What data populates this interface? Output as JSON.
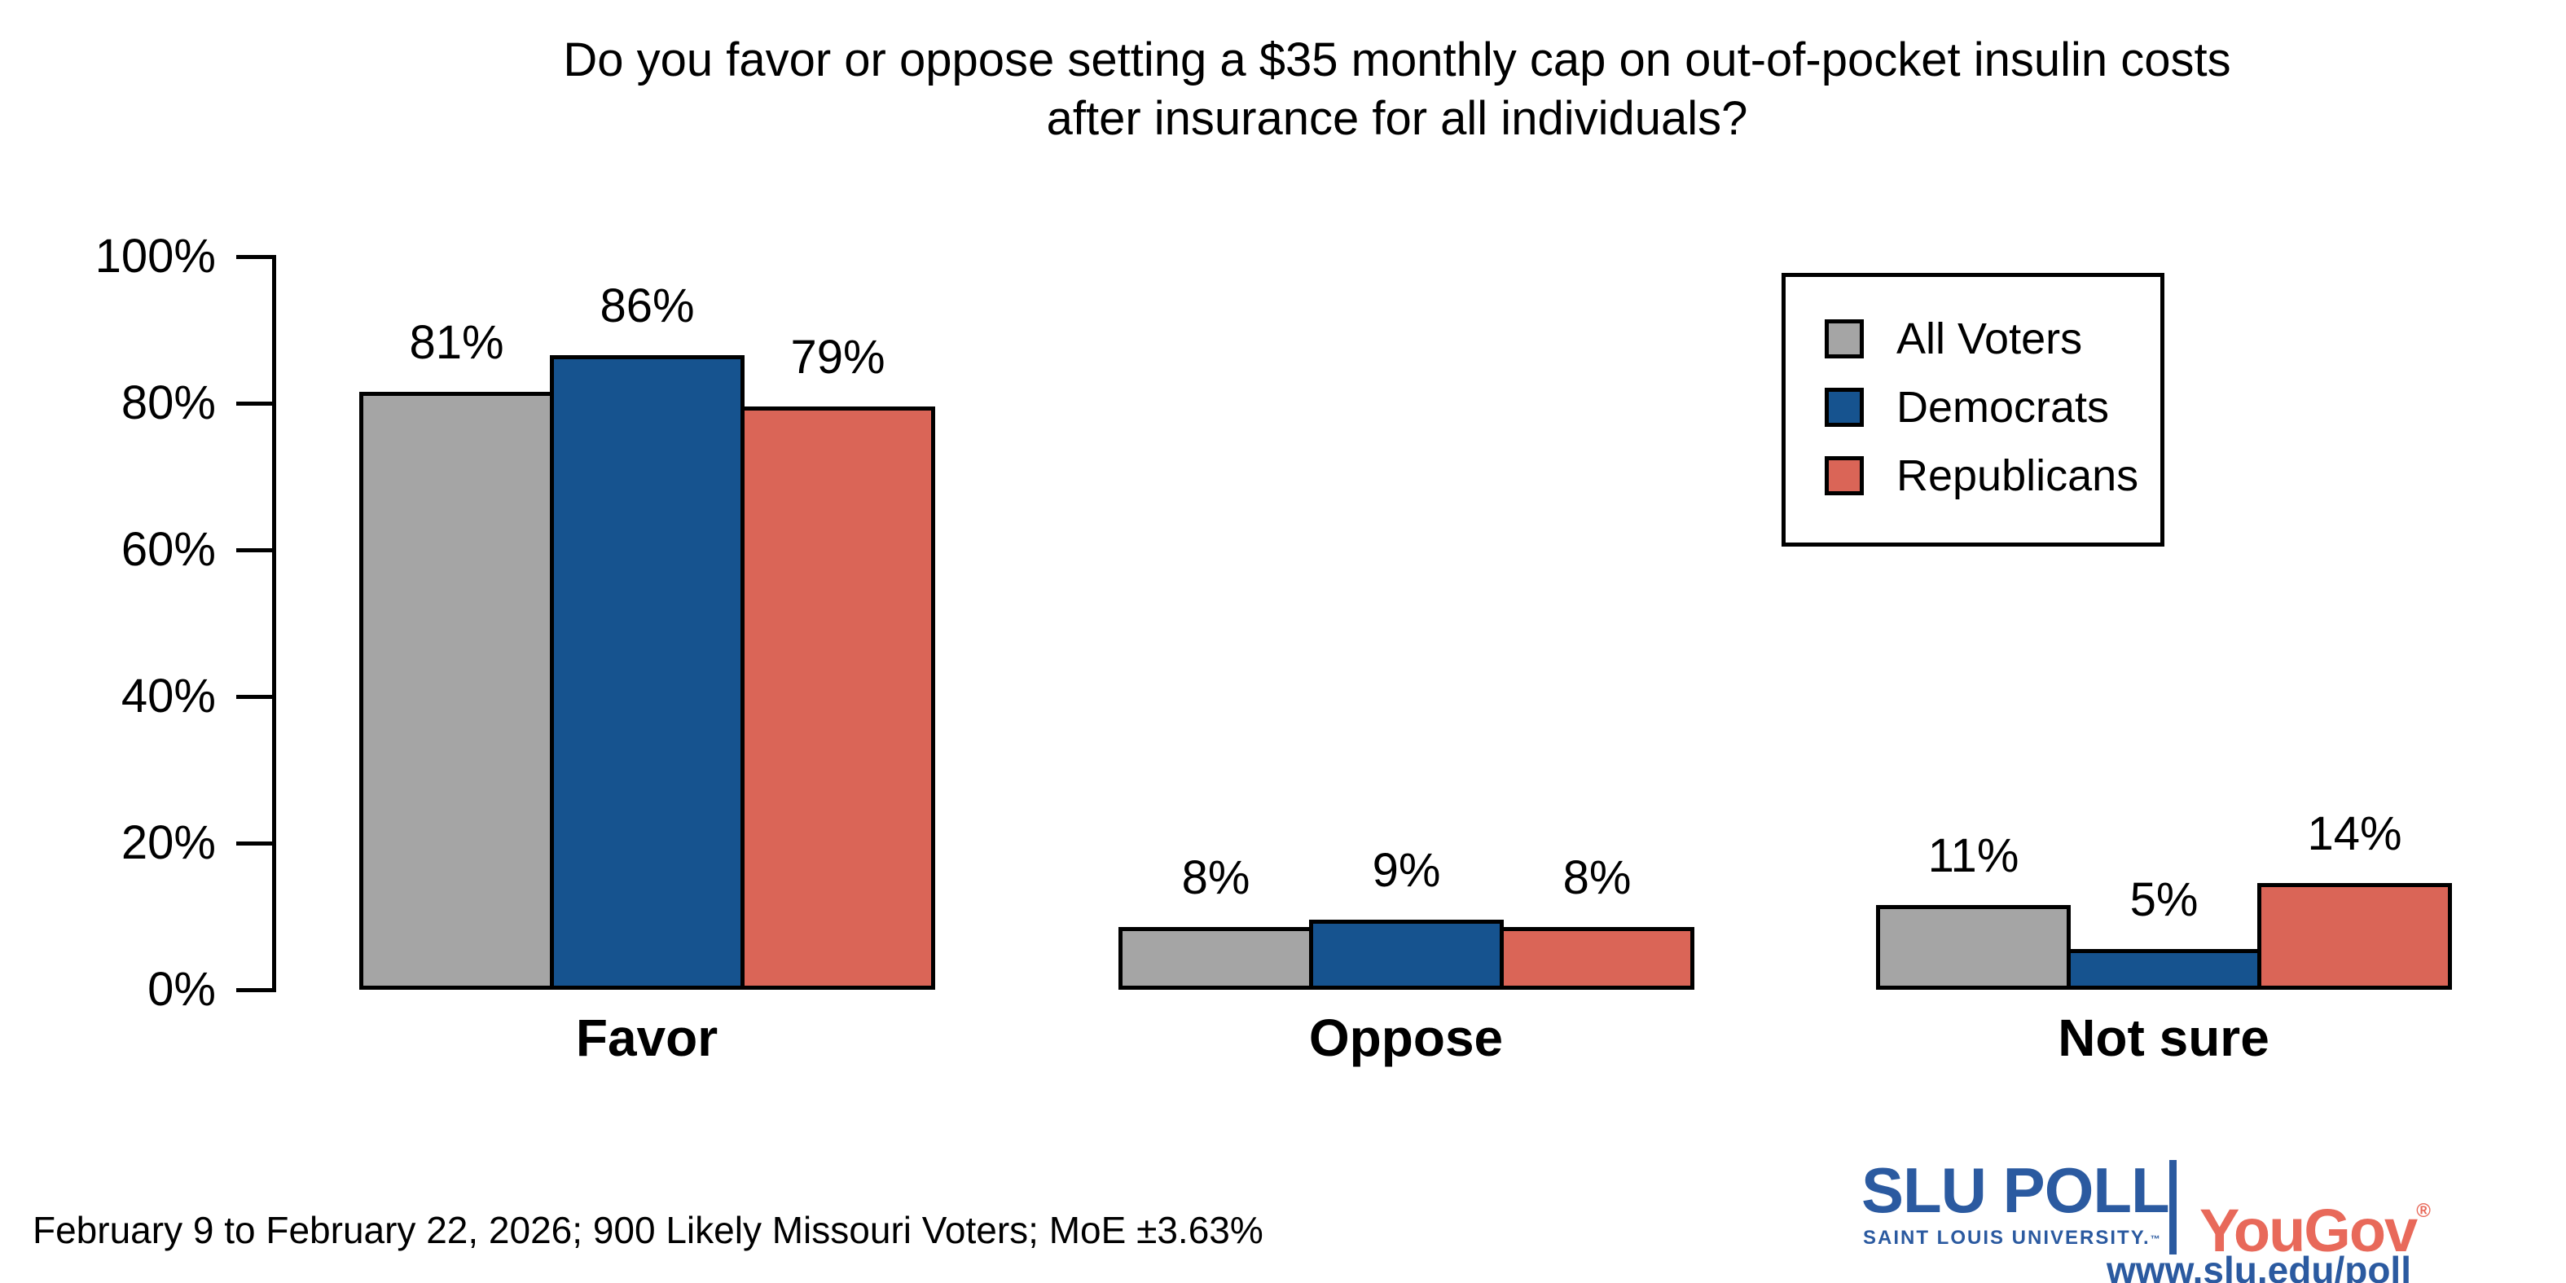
{
  "title": {
    "line1": "Do you favor or oppose setting a $35 monthly cap on out-of-pocket insulin costs",
    "line2": "after insurance for all individuals?"
  },
  "chart_data": {
    "type": "bar",
    "title": "Do you favor or oppose setting a $35 monthly cap on out-of-pocket insulin costs after insurance for all individuals?",
    "categories": [
      "Favor",
      "Oppose",
      "Not sure"
    ],
    "series": [
      {
        "name": "All Voters",
        "color": "#a5a5a5",
        "values": [
          81,
          8,
          11
        ]
      },
      {
        "name": "Democrats",
        "color": "#16538f",
        "values": [
          86,
          9,
          5
        ]
      },
      {
        "name": "Republicans",
        "color": "#da6557",
        "values": [
          79,
          8,
          14
        ]
      }
    ],
    "bar_labels": true,
    "value_suffix": "%",
    "xlabel": "",
    "ylabel": "",
    "ylim": [
      0,
      100
    ],
    "yticks": [
      0,
      20,
      40,
      60,
      80,
      100
    ],
    "ytick_suffix": "%",
    "grid": false,
    "legend_position": "top-right"
  },
  "footnote": "February 9 to February 22, 2026; 900 Likely Missouri Voters; MoE ±3.63%",
  "branding": {
    "slu_title": "SLU POLL",
    "slu_subtitle": "SAINT LOUIS UNIVERSITY.",
    "slu_tm": "™",
    "yougov": "YouGov",
    "yougov_reg": "®",
    "url": "www.slu.edu/poll",
    "slu_blue": "#2b5aa0",
    "yougov_red": "#e8695a"
  }
}
